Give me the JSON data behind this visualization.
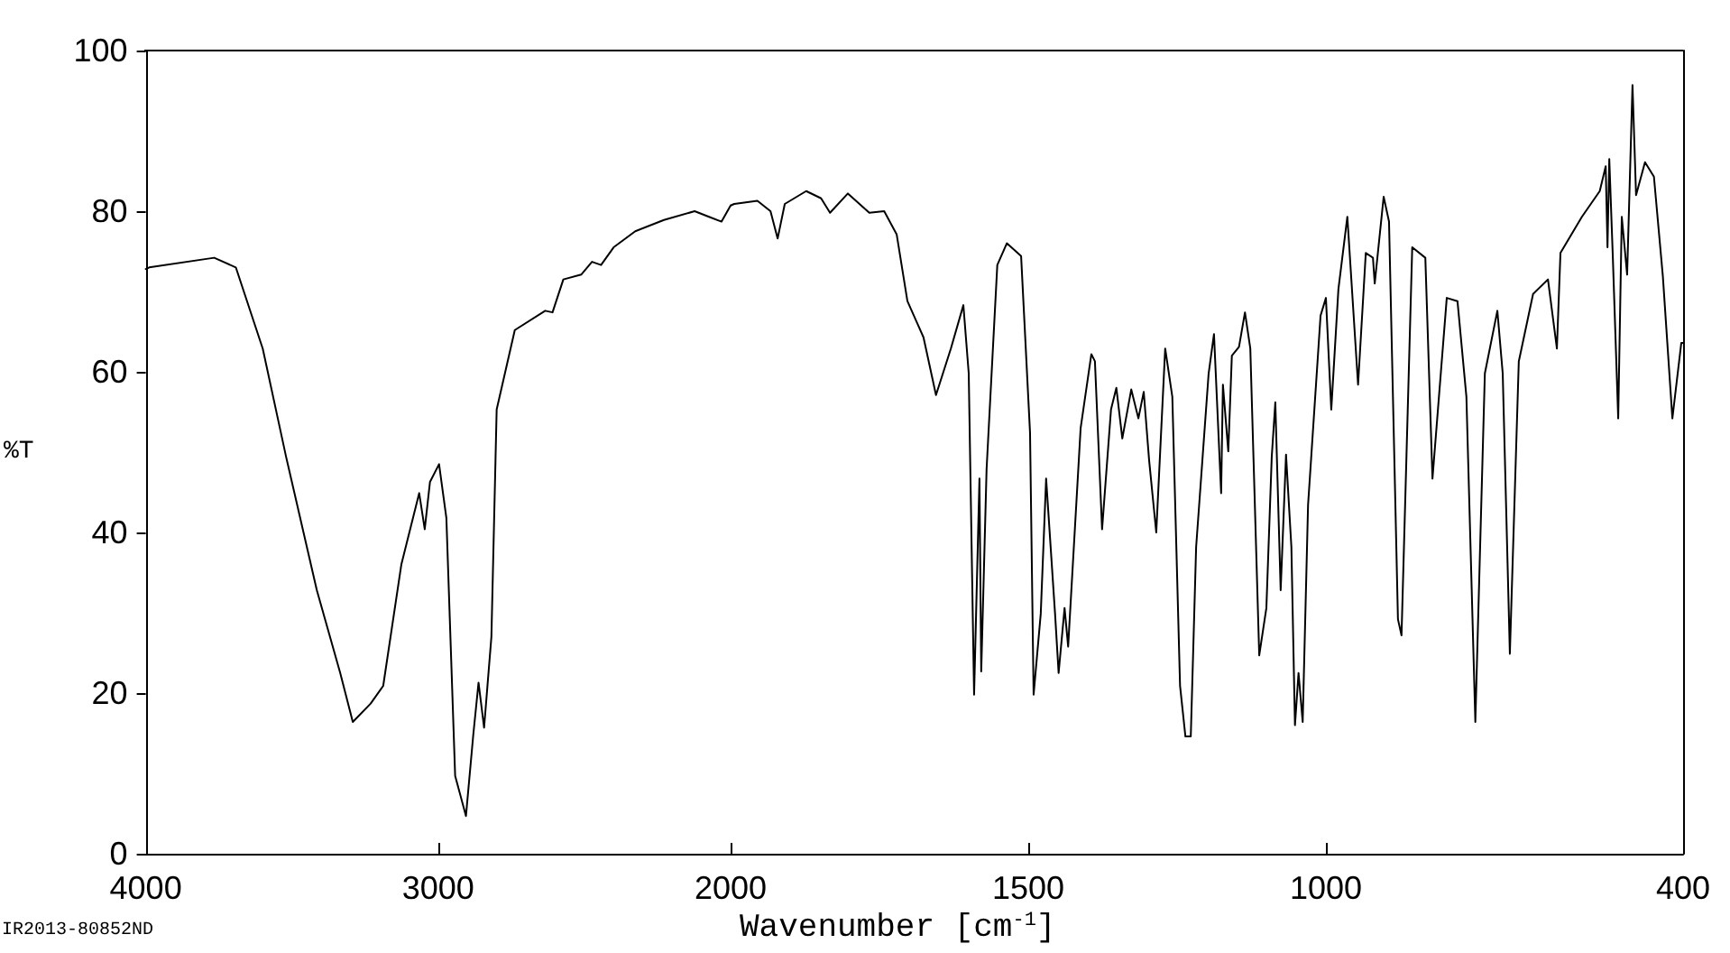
{
  "chart_data": [
    {
      "type": "line",
      "ylabel": "%T",
      "xlim": [
        4000,
        2000
      ],
      "xticks": [
        4000,
        3000,
        2000
      ],
      "ylim": [
        0,
        100
      ],
      "yticks": [
        0,
        20,
        40,
        60,
        80,
        100
      ],
      "grid": false,
      "annotations": [
        "IR2013-80852ND"
      ],
      "series": [
        {
          "color": "#000000",
          "x": [
            4000,
            3988,
            3766,
            3692,
            3600,
            3520,
            3415,
            3335,
            3292,
            3231,
            3188,
            3126,
            3065,
            3046,
            3028,
            2997,
            2972,
            2942,
            2905,
            2880,
            2862,
            2843,
            2818,
            2800,
            2738,
            2634,
            2609,
            2572,
            2511,
            2474,
            2443,
            2400,
            2326,
            2228,
            2123,
            2074,
            2031,
            2000
          ],
          "values": [
            72.8,
            73.0,
            74.2,
            73.0,
            62.9,
            49.4,
            32.8,
            22.5,
            16.4,
            18.7,
            20.9,
            36.0,
            44.9,
            40.4,
            46.3,
            48.5,
            41.8,
            9.7,
            4.7,
            14.8,
            21.3,
            15.7,
            27.0,
            55.3,
            65.2,
            67.6,
            67.4,
            71.5,
            72.1,
            73.7,
            73.3,
            75.5,
            77.5,
            78.9,
            80.0,
            79.3,
            78.7,
            80.7
          ]
        }
      ]
    },
    {
      "type": "line",
      "xlabel": "Wavenumber [cm$^{-1}$]",
      "xlim": [
        2000,
        400
      ],
      "xticks": [
        1500,
        1000,
        400
      ],
      "ylim": [
        0,
        100
      ],
      "yticks": [
        0,
        20,
        40,
        60,
        80,
        100
      ],
      "grid": false,
      "tick_labels": "x",
      "series": [
        {
          "color": "#000000",
          "x": [
            2000,
            1994,
            1955,
            1933,
            1921,
            1909,
            1873,
            1848,
            1833,
            1803,
            1767,
            1742,
            1721,
            1703,
            1676,
            1655,
            1630,
            1609,
            1600,
            1591,
            1582,
            1579,
            1570,
            1552,
            1536,
            1512,
            1497,
            1491,
            1479,
            1470,
            1455,
            1449,
            1439,
            1433,
            1412,
            1394,
            1388,
            1376,
            1361,
            1352,
            1342,
            1327,
            1315,
            1306,
            1297,
            1285,
            1270,
            1258,
            1245,
            1236,
            1227,
            1218,
            1197,
            1188,
            1176,
            1173,
            1164,
            1158,
            1146,
            1136,
            1127,
            1112,
            1100,
            1091,
            1085,
            1076,
            1067,
            1058,
            1052,
            1046,
            1039,
            1030,
            1009,
            1000,
            991,
            979,
            964,
            946,
            933,
            921,
            918,
            903,
            894,
            879,
            873,
            855,
            833,
            821,
            797,
            779,
            764,
            749,
            733,
            712,
            703,
            691,
            676,
            652,
            627,
            612,
            606,
            570,
            540,
            530,
            527,
            524,
            518,
            509,
            503,
            494,
            485,
            479,
            464,
            449,
            434,
            418,
            403,
            400
          ],
          "values": [
            80.7,
            80.9,
            81.3,
            80.0,
            76.6,
            80.9,
            82.5,
            81.6,
            79.8,
            82.2,
            79.8,
            80.0,
            77.1,
            68.8,
            64.3,
            57.1,
            62.9,
            68.3,
            59.8,
            19.8,
            46.7,
            22.7,
            47.9,
            73.3,
            76.0,
            74.4,
            52.4,
            19.8,
            29.9,
            46.7,
            29.9,
            22.5,
            30.6,
            25.8,
            53.0,
            62.2,
            61.3,
            40.4,
            55.3,
            58.0,
            51.7,
            57.8,
            54.2,
            57.5,
            49.0,
            40.0,
            62.9,
            56.9,
            20.9,
            14.6,
            14.6,
            38.2,
            59.8,
            64.7,
            44.9,
            58.4,
            50.1,
            62.0,
            63.1,
            67.4,
            62.9,
            24.7,
            30.6,
            49.4,
            56.2,
            32.8,
            49.7,
            38.2,
            16.0,
            22.5,
            16.4,
            43.4,
            67.0,
            69.2,
            55.3,
            70.3,
            79.3,
            58.4,
            74.8,
            74.2,
            71.0,
            81.8,
            78.7,
            29.2,
            27.2,
            75.5,
            74.2,
            46.7,
            69.2,
            68.8,
            56.9,
            16.4,
            59.8,
            67.6,
            59.8,
            24.9,
            61.3,
            69.7,
            71.5,
            62.9,
            74.8,
            79.3,
            82.5,
            85.6,
            75.5,
            86.5,
            74.2,
            54.2,
            79.3,
            72.1,
            95.7,
            82.0,
            86.1,
            84.3,
            71.9,
            54.2,
            63.6,
            63.6
          ]
        }
      ]
    }
  ]
}
